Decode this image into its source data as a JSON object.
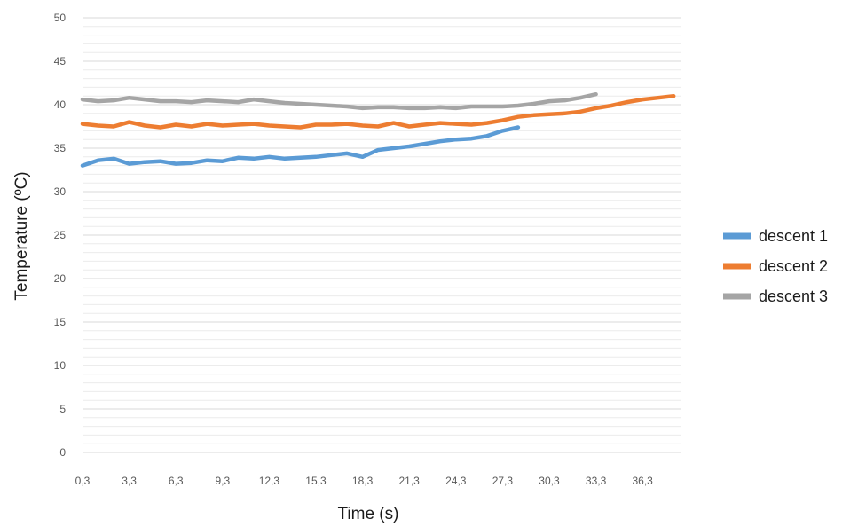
{
  "chart_data": {
    "type": "line",
    "title": "",
    "xlabel": "Time (s)",
    "ylabel": "Temperature (ºC)",
    "ylim": [
      0,
      50
    ],
    "y_ticks": [
      "0",
      "5",
      "10",
      "15",
      "20",
      "25",
      "30",
      "35",
      "40",
      "45",
      "50"
    ],
    "x_ticks": [
      "0,3",
      "3,3",
      "6,3",
      "9,3",
      "12,3",
      "15,3",
      "18,3",
      "21,3",
      "24,3",
      "27,3",
      "30,3",
      "33,3",
      "36,3"
    ],
    "xlim": [
      0.3,
      38.8
    ],
    "grid": true,
    "legend_position": "right",
    "colors": [
      "#5b9bd5",
      "#ed7d31",
      "#a5a5a5"
    ],
    "series": [
      {
        "name": "descent 1",
        "x": [
          0.3,
          1.3,
          2.3,
          3.3,
          4.3,
          5.3,
          6.3,
          7.3,
          8.3,
          9.3,
          10.3,
          11.3,
          12.3,
          13.3,
          14.3,
          15.3,
          16.3,
          17.3,
          18.3,
          19.3,
          20.3,
          21.3,
          22.3,
          23.3,
          24.3,
          25.3,
          26.3,
          27.3,
          28.3
        ],
        "y": [
          33.0,
          33.6,
          33.8,
          33.2,
          33.4,
          33.5,
          33.2,
          33.3,
          33.6,
          33.5,
          33.9,
          33.8,
          34.0,
          33.8,
          33.9,
          34.0,
          34.2,
          34.4,
          34.0,
          34.8,
          35.0,
          35.2,
          35.5,
          35.8,
          36.0,
          36.1,
          36.4,
          37.0,
          37.4
        ]
      },
      {
        "name": "descent 2",
        "x": [
          0.3,
          1.3,
          2.3,
          3.3,
          4.3,
          5.3,
          6.3,
          7.3,
          8.3,
          9.3,
          10.3,
          11.3,
          12.3,
          13.3,
          14.3,
          15.3,
          16.3,
          17.3,
          18.3,
          19.3,
          20.3,
          21.3,
          22.3,
          23.3,
          24.3,
          25.3,
          26.3,
          27.3,
          28.3,
          29.3,
          30.3,
          31.3,
          32.3,
          33.3,
          34.3,
          35.3,
          36.3,
          37.3,
          38.3
        ],
        "y": [
          37.8,
          37.6,
          37.5,
          38.0,
          37.6,
          37.4,
          37.7,
          37.5,
          37.8,
          37.6,
          37.7,
          37.8,
          37.6,
          37.5,
          37.4,
          37.7,
          37.7,
          37.8,
          37.6,
          37.5,
          37.9,
          37.5,
          37.7,
          37.9,
          37.8,
          37.7,
          37.9,
          38.2,
          38.6,
          38.8,
          38.9,
          39.0,
          39.2,
          39.6,
          39.9,
          40.3,
          40.6,
          40.8,
          41.0
        ]
      },
      {
        "name": "descent 3",
        "x": [
          0.3,
          1.3,
          2.3,
          3.3,
          4.3,
          5.3,
          6.3,
          7.3,
          8.3,
          9.3,
          10.3,
          11.3,
          12.3,
          13.3,
          14.3,
          15.3,
          16.3,
          17.3,
          18.3,
          19.3,
          20.3,
          21.3,
          22.3,
          23.3,
          24.3,
          25.3,
          26.3,
          27.3,
          28.3,
          29.3,
          30.3,
          31.3,
          32.3,
          33.3
        ],
        "y": [
          40.6,
          40.4,
          40.5,
          40.8,
          40.6,
          40.4,
          40.4,
          40.3,
          40.5,
          40.4,
          40.3,
          40.6,
          40.4,
          40.2,
          40.1,
          40.0,
          39.9,
          39.8,
          39.6,
          39.7,
          39.7,
          39.6,
          39.6,
          39.7,
          39.6,
          39.8,
          39.8,
          39.8,
          39.9,
          40.1,
          40.4,
          40.5,
          40.8,
          41.2
        ]
      }
    ]
  }
}
